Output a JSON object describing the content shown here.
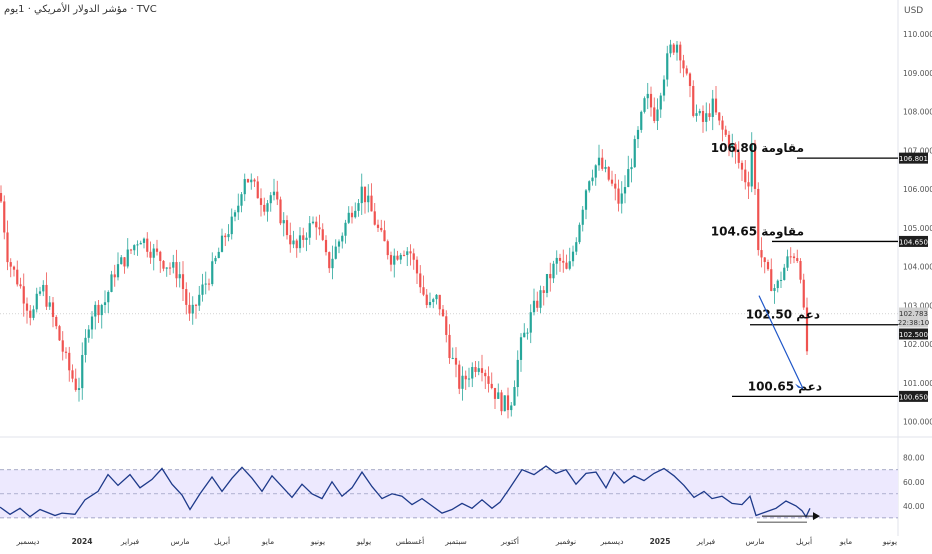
{
  "header": {
    "title": "مؤشر الدولار الأمريكي · 1يوم · TVC",
    "currency": "USD"
  },
  "colors": {
    "up": "#26a69a",
    "down": "#ef5350",
    "wick": "#555555",
    "rsi_line": "#1e3a8a",
    "rsi_band": "#ede9fe",
    "annotation_line": "#000000",
    "arrow": "#1e56c8"
  },
  "chart_data": [
    {
      "type": "candlestick",
      "title": "",
      "y_axis_ticks": [
        "110.000",
        "109.000",
        "108.000",
        "107.000",
        "106.000",
        "105.000",
        "104.000",
        "103.000",
        "102.000",
        "101.000",
        "100.000"
      ],
      "ylim": [
        99.7,
        110.4
      ],
      "price_tags": [
        {
          "label": "106.801",
          "value": 106.8,
          "style": "dark"
        },
        {
          "label": "104.650",
          "value": 104.65,
          "style": "dark"
        },
        {
          "label": "102.783",
          "value": 102.783,
          "style": "gray"
        },
        {
          "label": "22:38:10",
          "value": 102.6,
          "style": "gray"
        },
        {
          "label": "102.500",
          "value": 102.5,
          "style": "dark"
        },
        {
          "label": "100.650",
          "value": 100.65,
          "style": "dark"
        }
      ],
      "annotations": [
        {
          "name": "resistance-1",
          "text": "مقاومة 106.80",
          "value": 106.8
        },
        {
          "name": "resistance-2",
          "text": "مقاومة 104.65",
          "value": 104.65
        },
        {
          "name": "support-1",
          "text": "دعم 102.50",
          "value": 102.5
        },
        {
          "name": "support-2",
          "text": "دعم 100.65",
          "value": 100.65
        }
      ],
      "x_labels": [
        "ديسمبر",
        "2024",
        "فبراير",
        "مارس",
        "أبريل",
        "مايو",
        "يونيو",
        "يوليو",
        "أغسطس",
        "سبتمبر",
        "أكتوبر",
        "نوفمبر",
        "ديسمبر",
        "2025",
        "فبراير",
        "مارس",
        "أبريل",
        "مايو",
        "يونيو"
      ],
      "series_path": [
        [
          0,
          105.9
        ],
        [
          8,
          104.2
        ],
        [
          20,
          103.5
        ],
        [
          32,
          102.7
        ],
        [
          42,
          103.5
        ],
        [
          55,
          102.5
        ],
        [
          68,
          101.4
        ],
        [
          78,
          100.8
        ],
        [
          90,
          102.8
        ],
        [
          105,
          103.1
        ],
        [
          115,
          103.9
        ],
        [
          128,
          104.3
        ],
        [
          140,
          104.8
        ],
        [
          152,
          104.4
        ],
        [
          165,
          104.1
        ],
        [
          180,
          103.8
        ],
        [
          190,
          102.6
        ],
        [
          200,
          103.3
        ],
        [
          212,
          103.9
        ],
        [
          225,
          104.8
        ],
        [
          236,
          105.3
        ],
        [
          244,
          106.4
        ],
        [
          255,
          106.0
        ],
        [
          265,
          105.6
        ],
        [
          272,
          105.9
        ],
        [
          282,
          105.2
        ],
        [
          296,
          104.4
        ],
        [
          306,
          104.9
        ],
        [
          316,
          105.2
        ],
        [
          328,
          104.0
        ],
        [
          338,
          104.6
        ],
        [
          350,
          105.4
        ],
        [
          362,
          106.0
        ],
        [
          370,
          105.5
        ],
        [
          380,
          104.8
        ],
        [
          392,
          104.2
        ],
        [
          402,
          104.5
        ],
        [
          410,
          104.4
        ],
        [
          420,
          103.6
        ],
        [
          428,
          102.9
        ],
        [
          438,
          103.2
        ],
        [
          450,
          101.8
        ],
        [
          460,
          100.9
        ],
        [
          470,
          101.3
        ],
        [
          480,
          101.6
        ],
        [
          490,
          101.0
        ],
        [
          500,
          100.5
        ],
        [
          510,
          100.4
        ],
        [
          520,
          101.9
        ],
        [
          532,
          102.8
        ],
        [
          545,
          103.5
        ],
        [
          558,
          104.2
        ],
        [
          568,
          103.8
        ],
        [
          578,
          105.0
        ],
        [
          588,
          106.3
        ],
        [
          598,
          106.7
        ],
        [
          610,
          106.2
        ],
        [
          620,
          105.6
        ],
        [
          630,
          106.6
        ],
        [
          638,
          107.4
        ],
        [
          646,
          108.4
        ],
        [
          655,
          107.9
        ],
        [
          662,
          108.8
        ],
        [
          670,
          109.6
        ],
        [
          678,
          109.8
        ],
        [
          686,
          108.9
        ],
        [
          694,
          108.0
        ],
        [
          704,
          107.7
        ],
        [
          712,
          108.2
        ],
        [
          720,
          107.6
        ],
        [
          730,
          107.2
        ],
        [
          740,
          106.6
        ],
        [
          748,
          106.1
        ],
        [
          752,
          107.3
        ],
        [
          758,
          104.6
        ],
        [
          766,
          103.8
        ],
        [
          776,
          103.4
        ],
        [
          786,
          104.1
        ],
        [
          796,
          104.4
        ],
        [
          802,
          103.7
        ],
        [
          806,
          101.5
        ],
        [
          810,
          102.8
        ]
      ]
    },
    {
      "type": "line",
      "title": "",
      "y_axis_ticks": [
        "80.00",
        "60.00",
        "40.00"
      ],
      "band_levels": [
        70,
        50,
        30
      ],
      "ylim": [
        27,
        81
      ],
      "series": [
        {
          "values": [
            [
              0,
              39
            ],
            [
              10,
              33
            ],
            [
              20,
              38
            ],
            [
              30,
              31
            ],
            [
              40,
              37
            ],
            [
              55,
              32
            ],
            [
              62,
              34
            ],
            [
              75,
              33
            ],
            [
              85,
              45
            ],
            [
              98,
              52
            ],
            [
              108,
              66
            ],
            [
              118,
              57
            ],
            [
              130,
              66
            ],
            [
              140,
              55
            ],
            [
              152,
              62
            ],
            [
              162,
              71
            ],
            [
              172,
              58
            ],
            [
              182,
              49
            ],
            [
              190,
              37
            ],
            [
              200,
              50
            ],
            [
              212,
              64
            ],
            [
              222,
              52
            ],
            [
              232,
              63
            ],
            [
              242,
              72
            ],
            [
              252,
              63
            ],
            [
              262,
              52
            ],
            [
              272,
              65
            ],
            [
              282,
              56
            ],
            [
              292,
              47
            ],
            [
              302,
              58
            ],
            [
              312,
              50
            ],
            [
              322,
              46
            ],
            [
              332,
              60
            ],
            [
              342,
              48
            ],
            [
              352,
              55
            ],
            [
              362,
              68
            ],
            [
              372,
              56
            ],
            [
              382,
              46
            ],
            [
              392,
              50
            ],
            [
              402,
              48
            ],
            [
              412,
              41
            ],
            [
              422,
              46
            ],
            [
              432,
              40
            ],
            [
              442,
              34
            ],
            [
              452,
              37
            ],
            [
              462,
              42
            ],
            [
              472,
              38
            ],
            [
              482,
              45
            ],
            [
              492,
              38
            ],
            [
              500,
              43
            ],
            [
              510,
              55
            ],
            [
              522,
              70
            ],
            [
              534,
              66
            ],
            [
              546,
              73
            ],
            [
              556,
              67
            ],
            [
              566,
              70
            ],
            [
              576,
              58
            ],
            [
              586,
              67
            ],
            [
              596,
              68
            ],
            [
              606,
              55
            ],
            [
              614,
              68
            ],
            [
              624,
              59
            ],
            [
              634,
              65
            ],
            [
              644,
              61
            ],
            [
              654,
              67
            ],
            [
              664,
              71
            ],
            [
              674,
              65
            ],
            [
              684,
              57
            ],
            [
              694,
              47
            ],
            [
              704,
              52
            ],
            [
              712,
              46
            ],
            [
              722,
              48
            ],
            [
              732,
              42
            ],
            [
              742,
              41
            ],
            [
              750,
              48
            ],
            [
              756,
              32
            ],
            [
              766,
              35
            ],
            [
              776,
              38
            ],
            [
              786,
              44
            ],
            [
              796,
              40
            ],
            [
              802,
              36
            ],
            [
              806,
              31
            ],
            [
              810,
              38
            ]
          ]
        }
      ]
    }
  ]
}
